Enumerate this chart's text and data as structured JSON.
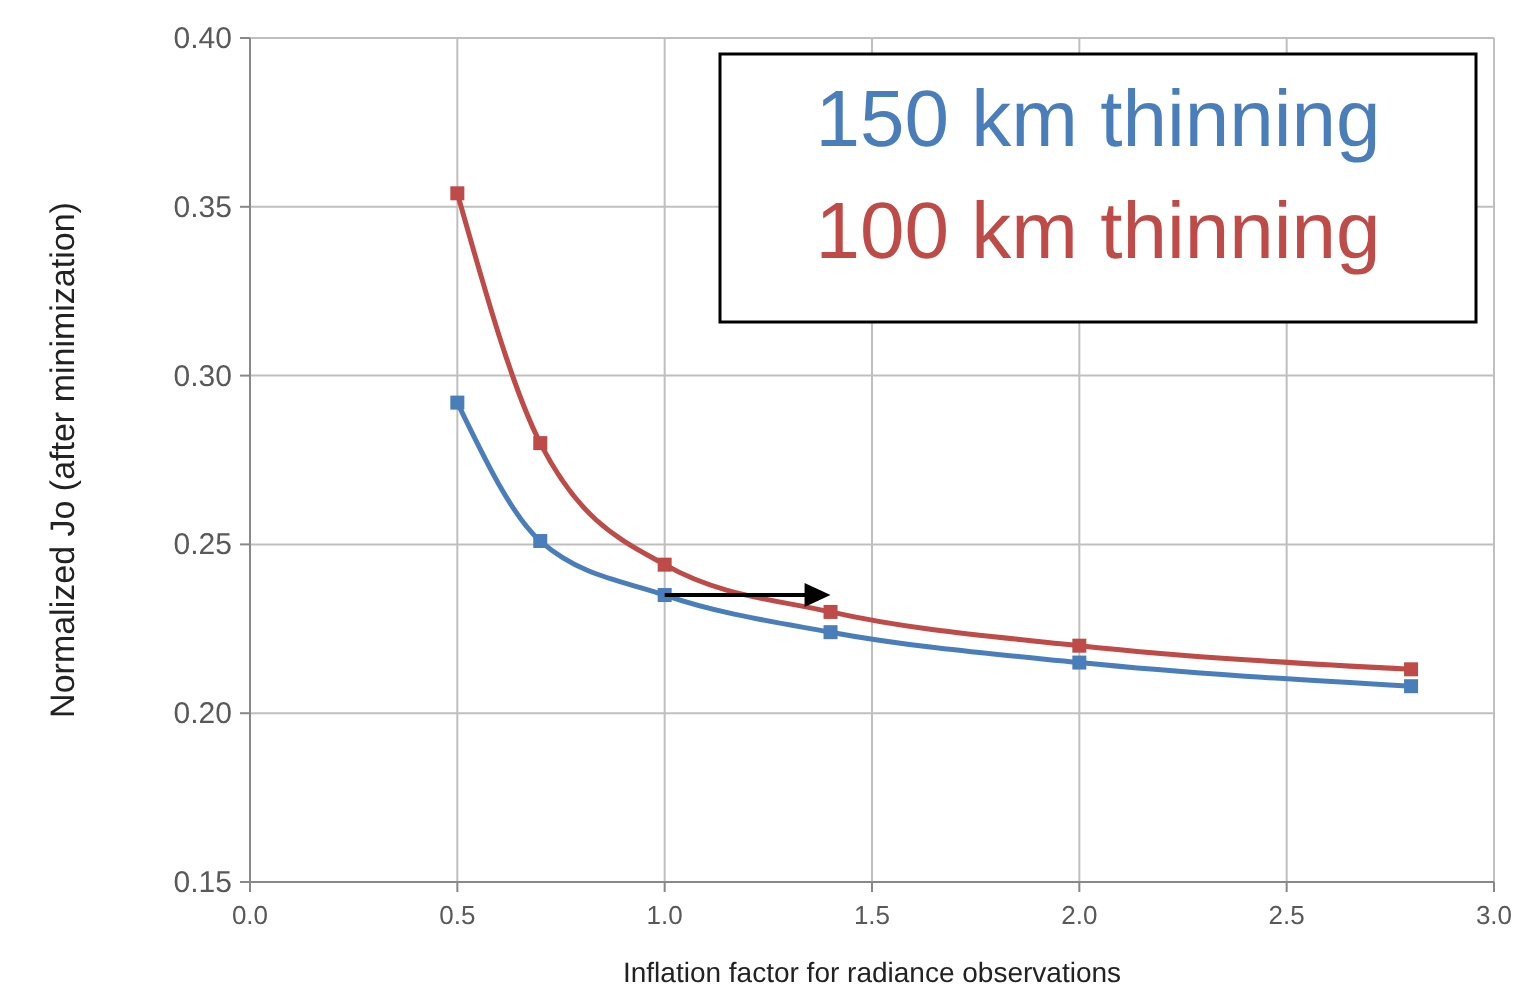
{
  "chart_data": {
    "type": "line",
    "xlabel": "Inflation factor for radiance observations",
    "ylabel": "Normalized Jo (after minimization)",
    "x": [
      0.5,
      0.7,
      1.0,
      1.4,
      2.0,
      2.8
    ],
    "series": [
      {
        "name": "150 km thinning",
        "color": "#4a7ebb",
        "values": [
          0.292,
          0.251,
          0.235,
          0.224,
          0.215,
          0.208
        ]
      },
      {
        "name": "100 km thinning",
        "color": "#be4b48",
        "values": [
          0.354,
          0.28,
          0.244,
          0.23,
          0.22,
          0.213
        ]
      }
    ],
    "xlim": [
      0,
      3
    ],
    "xticks": [
      {
        "value": 0,
        "label": "0.0"
      },
      0.5,
      {
        "value": 1,
        "label": "1.0"
      },
      1.5,
      {
        "value": 2,
        "label": "2.0"
      },
      2.5,
      {
        "value": 3,
        "label": "3.0"
      }
    ],
    "ylim": [
      0.15,
      0.4
    ],
    "yticks": [
      0.15,
      {
        "value": 0.2,
        "label": "0.20"
      },
      0.25,
      {
        "value": 0.3,
        "label": "0.30"
      },
      0.35,
      {
        "value": 0.4,
        "label": "0.40"
      }
    ],
    "grid": true,
    "marker": "square",
    "line_style": "solid"
  }
}
